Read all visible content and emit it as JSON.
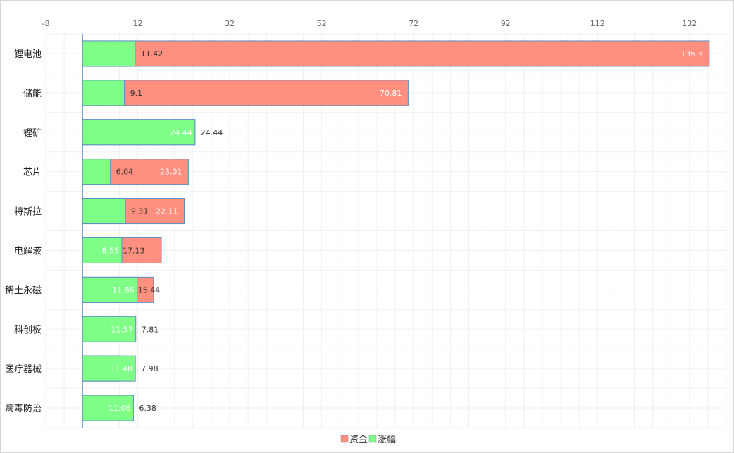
{
  "chart_data": {
    "type": "bar",
    "orientation": "horizontal",
    "title": "",
    "xlabel": "",
    "ylabel": "",
    "xlim": [
      -8,
      140
    ],
    "xticks": [
      -8,
      12,
      32,
      52,
      72,
      92,
      112,
      132
    ],
    "xtick_labels": [
      "-8",
      "12",
      "32",
      "52",
      "72",
      "92",
      "112",
      "132"
    ],
    "grid": true,
    "legend_position": "bottom-center",
    "categories": [
      "锂电池",
      "储能",
      "锂矿",
      "芯片",
      "特斯拉",
      "电解液",
      "稀土永磁",
      "科创板",
      "医疗器械",
      "病毒防治"
    ],
    "series": [
      {
        "name": "资金",
        "color": "#ff9080",
        "values": [
          136.3,
          70.81,
          24.44,
          23.01,
          22.11,
          17.13,
          15.44,
          7.81,
          7.98,
          6.38
        ],
        "label_text": [
          "136.3",
          "70.81",
          "24.44",
          "23.01",
          "22.11",
          "17.13",
          "15.44",
          "7.81",
          "7.98",
          "6.38"
        ]
      },
      {
        "name": "涨幅",
        "color": "#80ff88",
        "values": [
          11.42,
          9.1,
          24.44,
          6.04,
          9.31,
          8.55,
          11.86,
          11.57,
          11.48,
          11.06
        ],
        "label_text": [
          "11.42",
          "9.1",
          "24.44",
          "6.04",
          "9.31",
          "8.55",
          "11.86",
          "11.57",
          "11.48",
          "11.06"
        ]
      }
    ]
  }
}
